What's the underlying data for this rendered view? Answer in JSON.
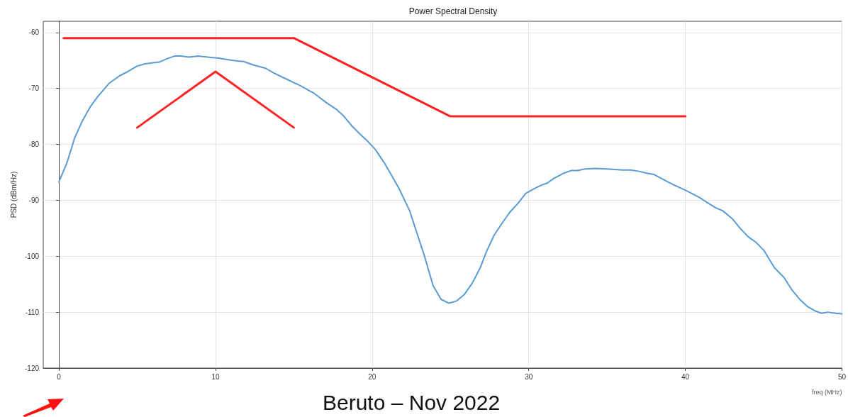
{
  "chart_data": {
    "type": "line",
    "title": "Power Spectral Density",
    "xlabel": "freq (MHz)",
    "ylabel": "PSD (dBm/Hz)",
    "annotations": [
      "Beruto – Nov 2022"
    ],
    "xlim": [
      -1,
      50
    ],
    "ylim": [
      -120,
      -58
    ],
    "xticks": [
      0,
      10,
      20,
      30,
      40,
      50
    ],
    "yticks": [
      -120,
      -110,
      -100,
      -90,
      -80,
      -70,
      -60
    ],
    "grid": true,
    "marker": "none",
    "line_style": "solid",
    "series": [
      {
        "color": "#5b9bd5",
        "x": [
          0,
          0.5,
          1.0,
          1.5,
          2.0,
          2.5,
          3.2,
          3.9,
          4.4,
          5.0,
          5.5,
          6.4,
          6.9,
          7.4,
          7.8,
          8.3,
          8.9,
          9.5,
          10.2,
          10.9,
          11.4,
          11.8,
          12.4,
          13.2,
          13.7,
          14.5,
          15.4,
          16.3,
          17.1,
          17.7,
          18.2,
          18.7,
          19.2,
          19.7,
          20.2,
          20.8,
          21.7,
          22.4,
          22.9,
          23.3,
          23.9,
          24.4,
          24.9,
          25.4,
          25.9,
          26.4,
          26.9,
          27.3,
          27.8,
          28.3,
          28.8,
          29.3,
          29.8,
          30.3,
          30.8,
          31.2,
          31.6,
          32.2,
          32.7,
          33.1,
          33.6,
          34.3,
          35.0,
          35.5,
          36.0,
          36.5,
          37.0,
          37.6,
          38.0,
          38.6,
          39.3,
          40.0,
          40.9,
          41.4,
          41.9,
          42.4,
          43.0,
          43.5,
          44.0,
          44.5,
          45.0,
          45.7,
          46.3,
          46.8,
          47.3,
          47.8,
          48.3,
          48.7,
          49.1,
          49.6,
          50.0
        ],
        "values": [
          -86.7,
          -83.4,
          -78.9,
          -75.8,
          -73.3,
          -71.4,
          -69.1,
          -67.7,
          -67.0,
          -66.0,
          -65.6,
          -65.3,
          -64.7,
          -64.2,
          -64.2,
          -64.4,
          -64.2,
          -64.4,
          -64.6,
          -64.9,
          -65.1,
          -65.2,
          -65.8,
          -66.4,
          -67.2,
          -68.3,
          -69.5,
          -70.9,
          -72.6,
          -73.7,
          -75.0,
          -76.7,
          -78.1,
          -79.4,
          -80.9,
          -83.4,
          -87.8,
          -91.9,
          -96.2,
          -99.6,
          -105.3,
          -107.7,
          -108.4,
          -108.0,
          -106.8,
          -104.8,
          -102.1,
          -99.2,
          -96.2,
          -94.1,
          -92.1,
          -90.6,
          -88.8,
          -88.0,
          -87.3,
          -86.9,
          -86.1,
          -85.2,
          -84.7,
          -84.7,
          -84.4,
          -84.3,
          -84.4,
          -84.5,
          -84.6,
          -84.6,
          -84.8,
          -85.2,
          -85.4,
          -86.3,
          -87.3,
          -88.2,
          -89.5,
          -90.4,
          -91.3,
          -91.9,
          -93.3,
          -95.0,
          -96.5,
          -97.5,
          -98.9,
          -102.1,
          -103.8,
          -106.0,
          -107.7,
          -109.0,
          -109.8,
          -110.2,
          -110.0,
          -110.2,
          -110.3
        ]
      },
      {
        "color": "#ff2222",
        "x": [
          0.3,
          15,
          25,
          40
        ],
        "values": [
          -61,
          -61,
          -75,
          -75
        ]
      },
      {
        "color": "#ff2222",
        "x": [
          5,
          10,
          15
        ],
        "values": [
          -77,
          -67,
          -77
        ]
      }
    ]
  }
}
